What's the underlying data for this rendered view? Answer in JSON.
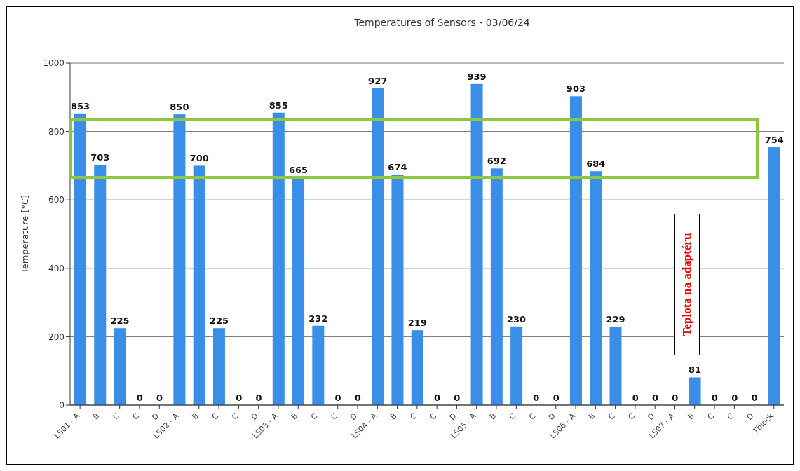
{
  "chart_data": {
    "type": "bar",
    "title": "Temperatures of Sensors - 03/06/24",
    "ylabel": "Temperature [°C]",
    "categories": [
      "LS01 - A",
      "B",
      "C",
      "C",
      "D",
      "LS02 - A",
      "B",
      "C",
      "C",
      "D",
      "LS03 - A",
      "B",
      "C",
      "C",
      "D",
      "LS04 - A",
      "B",
      "C",
      "C",
      "D",
      "LS05 - A",
      "B",
      "C",
      "C",
      "D",
      "LS06 - A",
      "B",
      "C",
      "C",
      "D",
      "LS07 - A",
      "B",
      "C",
      "C",
      "D",
      "Tblock"
    ],
    "values": [
      853,
      703,
      225,
      0,
      0,
      850,
      700,
      225,
      0,
      0,
      855,
      665,
      232,
      0,
      0,
      927,
      674,
      219,
      0,
      0,
      939,
      692,
      230,
      0,
      0,
      903,
      684,
      229,
      0,
      0,
      0,
      81,
      0,
      0,
      0,
      754
    ],
    "color": "#3b8ee8",
    "ylim": [
      0,
      1000
    ],
    "yticks": [
      0,
      200,
      400,
      600,
      800,
      1000
    ],
    "grid": "y",
    "data_labels": true,
    "annotations": [
      "Teplota na adaptéru"
    ]
  }
}
